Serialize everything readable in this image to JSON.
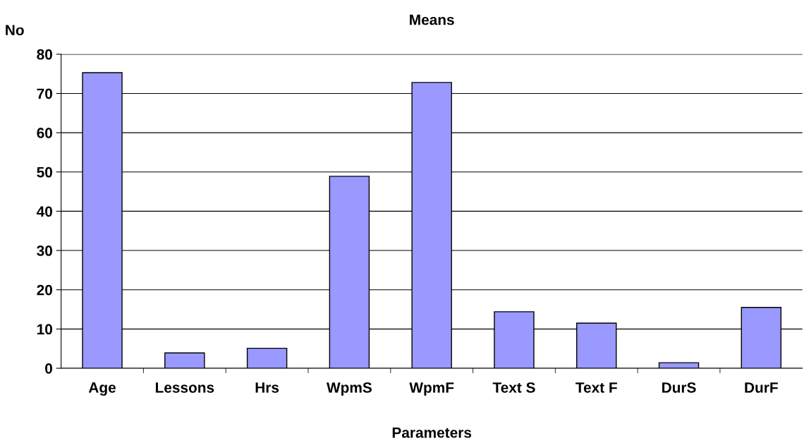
{
  "chart_data": {
    "type": "bar",
    "title": "Means",
    "xlabel": "Parameters",
    "ylabel": "No",
    "categories": [
      "Age",
      "Lessons",
      "Hrs",
      "WpmS",
      "WpmF",
      "Text S",
      "Text F",
      "DurS",
      "DurF"
    ],
    "values": [
      75.3,
      3.9,
      5.1,
      48.9,
      72.8,
      14.4,
      11.5,
      1.4,
      15.5
    ],
    "color": "#9999ff",
    "ylim": [
      0,
      80
    ],
    "yticks": [
      0,
      10,
      20,
      30,
      40,
      50,
      60,
      70,
      80
    ],
    "grid": "y",
    "legend": false
  }
}
